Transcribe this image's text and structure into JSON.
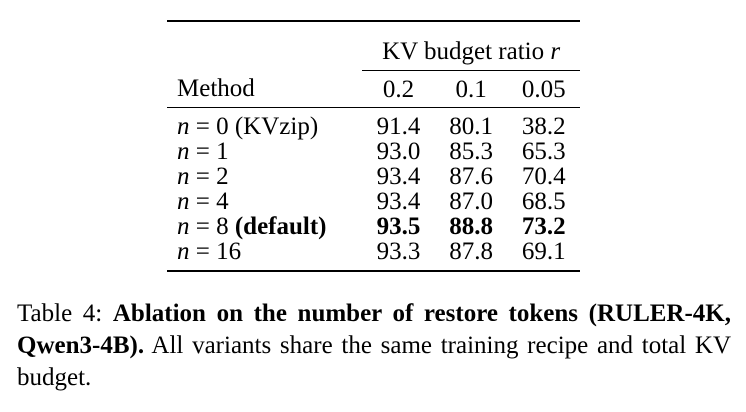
{
  "table": {
    "header_group": "KV budget ratio",
    "header_group_symbol": "r",
    "method_header": "Method",
    "ratios": [
      "0.2",
      "0.1",
      "0.05"
    ],
    "rows": [
      {
        "var": "n",
        "eq": " = 0",
        "note": " (KVzip)",
        "values": [
          "91.4",
          "80.1",
          "38.2"
        ],
        "bold": false
      },
      {
        "var": "n",
        "eq": " = 1",
        "note": "",
        "values": [
          "93.0",
          "85.3",
          "65.3"
        ],
        "bold": false
      },
      {
        "var": "n",
        "eq": " = 2",
        "note": "",
        "values": [
          "93.4",
          "87.6",
          "70.4"
        ],
        "bold": false
      },
      {
        "var": "n",
        "eq": " = 4",
        "note": "",
        "values": [
          "93.4",
          "87.0",
          "68.5"
        ],
        "bold": false
      },
      {
        "var": "n",
        "eq": " = 8",
        "note": " (default)",
        "values": [
          "93.5",
          "88.8",
          "73.2"
        ],
        "bold": true
      },
      {
        "var": "n",
        "eq": " = 16",
        "note": "",
        "values": [
          "93.3",
          "87.8",
          "69.1"
        ],
        "bold": false
      }
    ]
  },
  "caption": {
    "label": "Table 4:",
    "bold_text": "Ablation on the number of restore tokens (RULER-4K, Qwen3-4B).",
    "text": "All variants share the same training recipe and total KV budget."
  }
}
